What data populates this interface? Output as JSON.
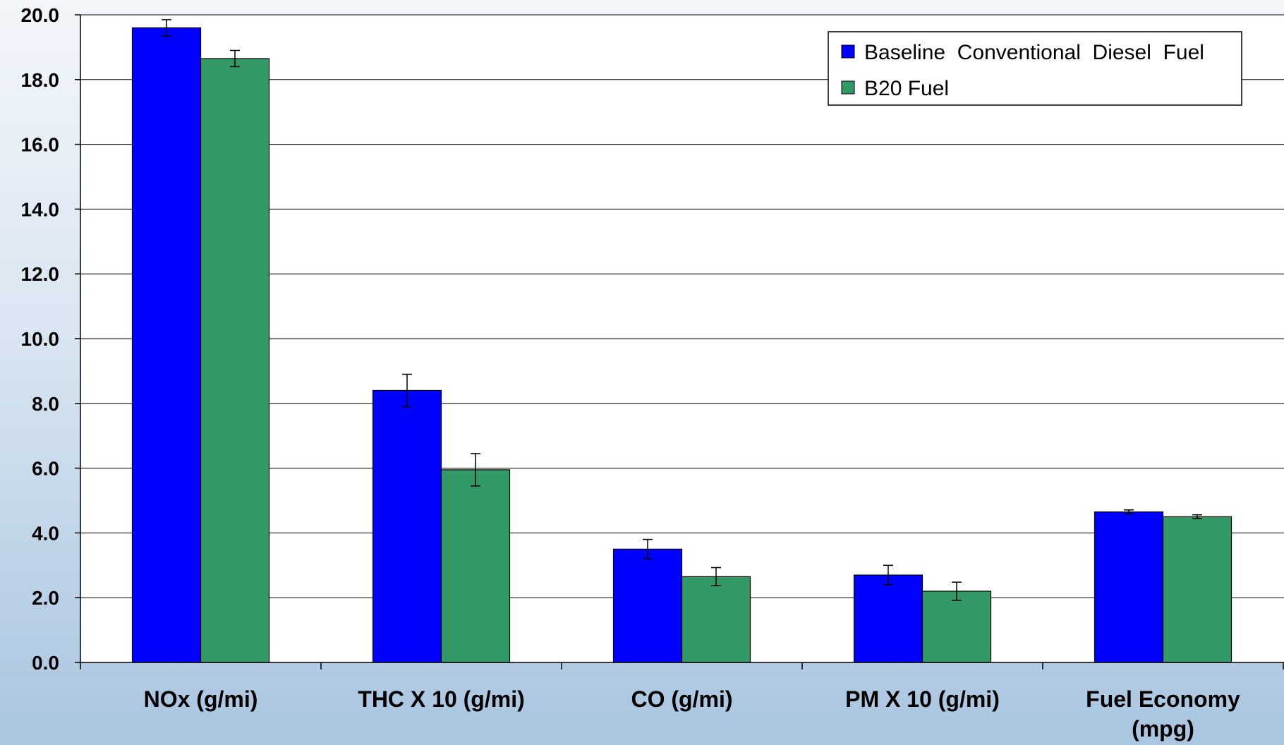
{
  "chart_data": {
    "type": "bar",
    "categories": [
      [
        "NOx (g/mi)"
      ],
      [
        "THC  X  10  (g/mi)"
      ],
      [
        "CO  (g/mi)"
      ],
      [
        "PM  X  10  (g/mi)"
      ],
      [
        "Fuel  Economy",
        "(mpg)"
      ]
    ],
    "series": [
      {
        "name": "Baseline  Conventional  Diesel  Fuel",
        "color": "#0000ff",
        "values": [
          19.6,
          8.4,
          3.5,
          2.7,
          4.65
        ],
        "errors": [
          0.25,
          0.5,
          0.3,
          0.3,
          0.06
        ]
      },
      {
        "name": "B20 Fuel",
        "color": "#339966",
        "values": [
          18.65,
          5.95,
          2.65,
          2.2,
          4.5
        ],
        "errors": [
          0.25,
          0.5,
          0.28,
          0.28,
          0.06
        ]
      }
    ],
    "ylim": [
      0,
      20
    ],
    "yticks": [
      "0.0",
      "2.0",
      "4.0",
      "6.0",
      "8.0",
      "10.0",
      "12.0",
      "14.0",
      "16.0",
      "18.0",
      "20.0"
    ],
    "grid": true,
    "legend_position": "top-right",
    "title": "",
    "xlabel": "",
    "ylabel": ""
  }
}
